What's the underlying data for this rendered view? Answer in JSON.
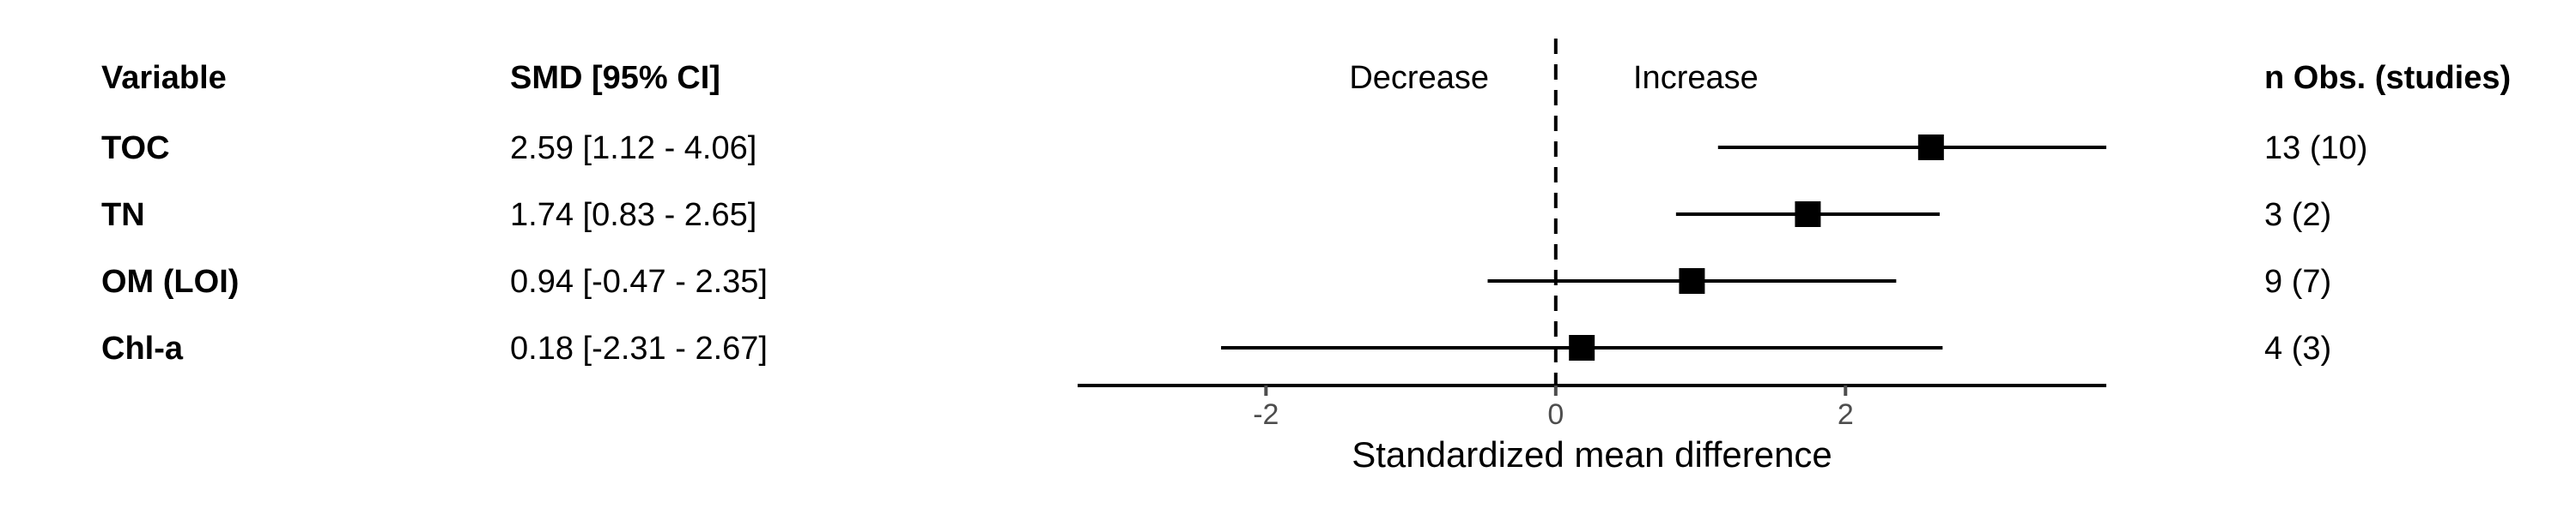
{
  "chart_data": {
    "type": "forest",
    "columns": {
      "variable": "Variable",
      "smd": "SMD [95% CI]",
      "n_obs": "n Obs. (studies)"
    },
    "direction_labels": {
      "left": "Decrease",
      "right": "Increase"
    },
    "xlabel": "Standardized mean difference",
    "xlim": [
      -3.3,
      3.8
    ],
    "xticks": [
      -2,
      0,
      2
    ],
    "reference_line": 0,
    "rows": [
      {
        "variable": "TOC",
        "estimate": 2.59,
        "lower": 1.12,
        "upper": 4.06,
        "ci_text": "2.59 [1.12 - 4.06]",
        "n_obs": "13 (10)"
      },
      {
        "variable": "TN",
        "estimate": 1.74,
        "lower": 0.83,
        "upper": 2.65,
        "ci_text": "1.74 [0.83 - 2.65]",
        "n_obs": "3 (2)"
      },
      {
        "variable": "OM (LOI)",
        "estimate": 0.94,
        "lower": -0.47,
        "upper": 2.35,
        "ci_text": "0.94 [-0.47 - 2.35]",
        "n_obs": "9 (7)"
      },
      {
        "variable": "Chl-a",
        "estimate": 0.18,
        "lower": -2.31,
        "upper": 2.67,
        "ci_text": "0.18 [-2.31 - 2.67]",
        "n_obs": "4 (3)"
      }
    ]
  }
}
